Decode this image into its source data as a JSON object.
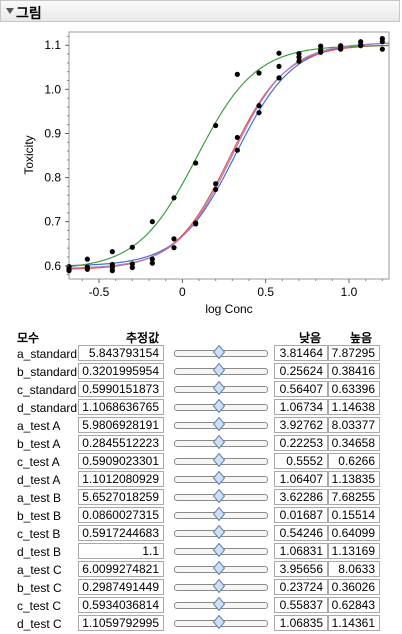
{
  "panel": {
    "title": "그림"
  },
  "chart_data": {
    "type": "line",
    "title": "",
    "xlabel": "log Conc",
    "ylabel": "Toxicity",
    "xlim": [
      -0.68,
      1.24
    ],
    "ylim": [
      0.57,
      1.13
    ],
    "xticks": [
      -0.5,
      0,
      0.5,
      1
    ],
    "xtick_labels": [
      "-0.5",
      "0",
      "0.5",
      "1.0"
    ],
    "yticks": [
      0.6,
      0.7,
      0.8,
      0.9,
      1.0,
      1.1
    ],
    "ytick_labels": [
      "0.6",
      "0.7",
      "0.8",
      "0.9",
      "1.0",
      "1.1"
    ],
    "grid": false,
    "legend": "none",
    "series": [
      {
        "color": "#4472c4",
        "a": 5.843793154,
        "b": 0.3201995954,
        "c": 0.5990151873,
        "d": 1.1068636765
      },
      {
        "color": "#e05545",
        "a": 5.9806928191,
        "b": 0.2845512223,
        "c": 0.5909023301,
        "d": 1.1012080929
      },
      {
        "color": "#3f9f3f",
        "a": 5.6527018259,
        "b": 0.0860027315,
        "c": 0.5917244683,
        "d": 1.1
      },
      {
        "color": "#b07acb",
        "a": 6.0099274821,
        "b": 0.2987491449,
        "c": 0.5934036814,
        "d": 1.1059792995
      }
    ],
    "points": [
      {
        "x": -0.68,
        "y": 0.598
      },
      {
        "x": -0.68,
        "y": 0.593
      },
      {
        "x": -0.68,
        "y": 0.589
      },
      {
        "x": -0.57,
        "y": 0.615
      },
      {
        "x": -0.57,
        "y": 0.597
      },
      {
        "x": -0.57,
        "y": 0.592
      },
      {
        "x": -0.42,
        "y": 0.632
      },
      {
        "x": -0.42,
        "y": 0.603
      },
      {
        "x": -0.42,
        "y": 0.596
      },
      {
        "x": -0.42,
        "y": 0.589
      },
      {
        "x": -0.3,
        "y": 0.642
      },
      {
        "x": -0.3,
        "y": 0.604
      },
      {
        "x": -0.3,
        "y": 0.596
      },
      {
        "x": -0.18,
        "y": 0.7
      },
      {
        "x": -0.18,
        "y": 0.615
      },
      {
        "x": -0.18,
        "y": 0.606
      },
      {
        "x": -0.05,
        "y": 0.754
      },
      {
        "x": -0.05,
        "y": 0.661
      },
      {
        "x": -0.05,
        "y": 0.641
      },
      {
        "x": 0.08,
        "y": 0.833
      },
      {
        "x": 0.08,
        "y": 0.695
      },
      {
        "x": 0.08,
        "y": 0.697
      },
      {
        "x": 0.2,
        "y": 0.918
      },
      {
        "x": 0.2,
        "y": 0.786
      },
      {
        "x": 0.2,
        "y": 0.773
      },
      {
        "x": 0.33,
        "y": 1.034
      },
      {
        "x": 0.33,
        "y": 0.891
      },
      {
        "x": 0.33,
        "y": 0.862
      },
      {
        "x": 0.46,
        "y": 1.037
      },
      {
        "x": 0.46,
        "y": 0.963
      },
      {
        "x": 0.46,
        "y": 0.947
      },
      {
        "x": 0.58,
        "y": 1.082
      },
      {
        "x": 0.58,
        "y": 1.052
      },
      {
        "x": 0.58,
        "y": 1.026
      },
      {
        "x": 0.7,
        "y": 1.081
      },
      {
        "x": 0.7,
        "y": 1.073
      },
      {
        "x": 0.7,
        "y": 1.064
      },
      {
        "x": 0.83,
        "y": 1.098
      },
      {
        "x": 0.83,
        "y": 1.089
      },
      {
        "x": 0.83,
        "y": 1.084
      },
      {
        "x": 0.95,
        "y": 1.099
      },
      {
        "x": 0.95,
        "y": 1.096
      },
      {
        "x": 0.95,
        "y": 1.091
      },
      {
        "x": 1.07,
        "y": 1.108
      },
      {
        "x": 1.07,
        "y": 1.101
      },
      {
        "x": 1.07,
        "y": 1.099
      },
      {
        "x": 1.2,
        "y": 1.115
      },
      {
        "x": 1.2,
        "y": 1.108
      },
      {
        "x": 1.2,
        "y": 1.091
      }
    ]
  },
  "table": {
    "header_param": "모수",
    "header_estimate": "추정값",
    "header_low": "낮음",
    "header_high": "높음",
    "rows": [
      {
        "name": "a_standard",
        "estimate": "5.843793154",
        "low": "3.81464",
        "high": "7.87295"
      },
      {
        "name": "b_standard",
        "estimate": "0.3201995954",
        "low": "0.25624",
        "high": "0.38416"
      },
      {
        "name": "c_standard",
        "estimate": "0.5990151873",
        "low": "0.56407",
        "high": "0.63396"
      },
      {
        "name": "d_standard",
        "estimate": "1.1068636765",
        "low": "1.06734",
        "high": "1.14638"
      },
      {
        "name": "a_test A",
        "estimate": "5.9806928191",
        "low": "3.92762",
        "high": "8.03377"
      },
      {
        "name": "b_test A",
        "estimate": "0.2845512223",
        "low": "0.22253",
        "high": "0.34658"
      },
      {
        "name": "c_test A",
        "estimate": "0.5909023301",
        "low": "0.5552",
        "high": "0.6266"
      },
      {
        "name": "d_test A",
        "estimate": "1.1012080929",
        "low": "1.06407",
        "high": "1.13835"
      },
      {
        "name": "a_test B",
        "estimate": "5.6527018259",
        "low": "3.62286",
        "high": "7.68255"
      },
      {
        "name": "b_test B",
        "estimate": "0.0860027315",
        "low": "0.01687",
        "high": "0.15514"
      },
      {
        "name": "c_test B",
        "estimate": "0.5917244683",
        "low": "0.54246",
        "high": "0.64099"
      },
      {
        "name": "d_test B",
        "estimate": "1.1",
        "low": "1.06831",
        "high": "1.13169"
      },
      {
        "name": "a_test C",
        "estimate": "6.0099274821",
        "low": "3.95656",
        "high": "8.0633"
      },
      {
        "name": "b_test C",
        "estimate": "0.2987491449",
        "low": "0.23724",
        "high": "0.36026"
      },
      {
        "name": "c_test C",
        "estimate": "0.5934036814",
        "low": "0.55837",
        "high": "0.62843"
      },
      {
        "name": "d_test C",
        "estimate": "1.1059792995",
        "low": "1.06835",
        "high": "1.14361"
      }
    ]
  }
}
